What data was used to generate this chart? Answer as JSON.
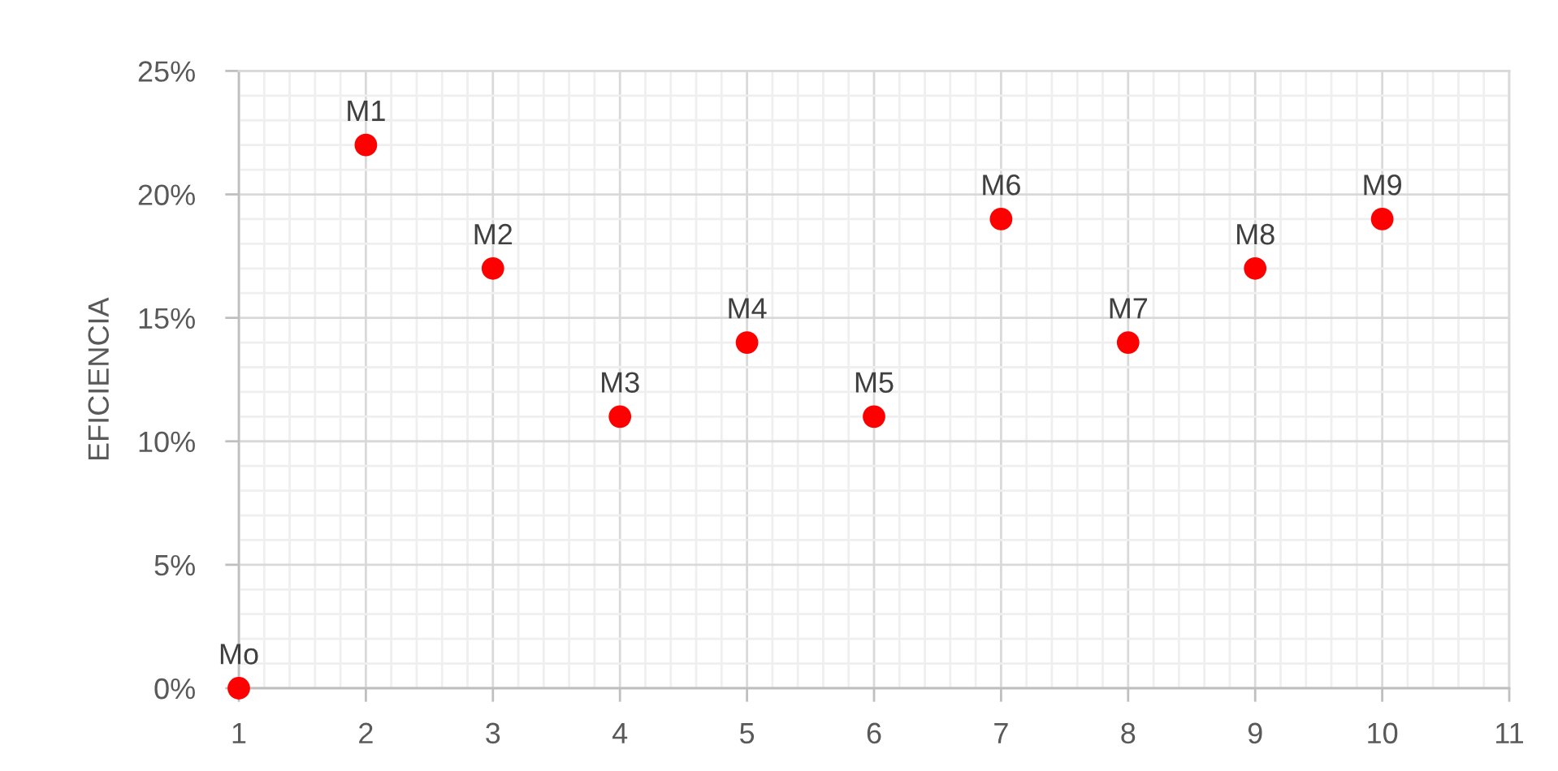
{
  "chart_data": {
    "type": "scatter",
    "ylabel": "EFICIENCIA",
    "series": [
      {
        "color": "#ff0000",
        "x": [
          1,
          2,
          3,
          4,
          5,
          6,
          7,
          8,
          9,
          10
        ],
        "values": [
          0,
          22,
          17,
          11,
          14,
          11,
          19,
          14,
          17,
          19
        ]
      }
    ],
    "annotations": [
      {
        "text": "Mo",
        "x": 1,
        "y": 0
      },
      {
        "text": "M1",
        "x": 2,
        "y": 22
      },
      {
        "text": "M2",
        "x": 3,
        "y": 17
      },
      {
        "text": "M3",
        "x": 4,
        "y": 11
      },
      {
        "text": "M4",
        "x": 5,
        "y": 14
      },
      {
        "text": "M5",
        "x": 6,
        "y": 11
      },
      {
        "text": "M6",
        "x": 7,
        "y": 19
      },
      {
        "text": "M7",
        "x": 8,
        "y": 14
      },
      {
        "text": "M8",
        "x": 9,
        "y": 17
      },
      {
        "text": "M9",
        "x": 10,
        "y": 19
      }
    ],
    "xlim": [
      1,
      11
    ],
    "xticks": [
      1,
      {
        "value": 1.2,
        "label": null
      },
      {
        "value": 1.4,
        "label": null
      },
      {
        "value": 1.6,
        "label": null
      },
      {
        "value": 1.8,
        "label": null
      },
      2,
      {
        "value": 2.2,
        "label": null
      },
      {
        "value": 2.4,
        "label": null
      },
      {
        "value": 2.6,
        "label": null
      },
      {
        "value": 2.8,
        "label": null
      },
      3,
      {
        "value": 3.2,
        "label": null
      },
      {
        "value": 3.4,
        "label": null
      },
      {
        "value": 3.6,
        "label": null
      },
      {
        "value": 3.8,
        "label": null
      },
      4,
      {
        "value": 4.2,
        "label": null
      },
      {
        "value": 4.4,
        "label": null
      },
      {
        "value": 4.6,
        "label": null
      },
      {
        "value": 4.8,
        "label": null
      },
      5,
      {
        "value": 5.2,
        "label": null
      },
      {
        "value": 5.4,
        "label": null
      },
      {
        "value": 5.6,
        "label": null
      },
      {
        "value": 5.8,
        "label": null
      },
      6,
      {
        "value": 6.2,
        "label": null
      },
      {
        "value": 6.4,
        "label": null
      },
      {
        "value": 6.6,
        "label": null
      },
      {
        "value": 6.8,
        "label": null
      },
      7,
      {
        "value": 7.2,
        "label": null
      },
      {
        "value": 7.4,
        "label": null
      },
      {
        "value": 7.6,
        "label": null
      },
      {
        "value": 7.8,
        "label": null
      },
      8,
      {
        "value": 8.2,
        "label": null
      },
      {
        "value": 8.4,
        "label": null
      },
      {
        "value": 8.6,
        "label": null
      },
      {
        "value": 8.8,
        "label": null
      },
      9,
      {
        "value": 9.2,
        "label": null
      },
      {
        "value": 9.4,
        "label": null
      },
      {
        "value": 9.6,
        "label": null
      },
      {
        "value": 9.8,
        "label": null
      },
      10,
      {
        "value": 10.2,
        "label": null
      },
      {
        "value": 10.4,
        "label": null
      },
      {
        "value": 10.6,
        "label": null
      },
      {
        "value": 10.8,
        "label": null
      },
      11
    ],
    "ylim": [
      0,
      25
    ],
    "yticks": [
      {
        "value": 0,
        "label": "0%"
      },
      {
        "value": 1,
        "label": null
      },
      {
        "value": 2,
        "label": null
      },
      {
        "value": 3,
        "label": null
      },
      {
        "value": 4,
        "label": null
      },
      {
        "value": 5,
        "label": "5%"
      },
      {
        "value": 6,
        "label": null
      },
      {
        "value": 7,
        "label": null
      },
      {
        "value": 8,
        "label": null
      },
      {
        "value": 9,
        "label": null
      },
      {
        "value": 10,
        "label": "10%"
      },
      {
        "value": 11,
        "label": null
      },
      {
        "value": 12,
        "label": null
      },
      {
        "value": 13,
        "label": null
      },
      {
        "value": 14,
        "label": null
      },
      {
        "value": 15,
        "label": "15%"
      },
      {
        "value": 16,
        "label": null
      },
      {
        "value": 17,
        "label": null
      },
      {
        "value": 18,
        "label": null
      },
      {
        "value": 19,
        "label": null
      },
      {
        "value": 20,
        "label": "20%"
      },
      {
        "value": 21,
        "label": null
      },
      {
        "value": 22,
        "label": null
      },
      {
        "value": 23,
        "label": null
      },
      {
        "value": 24,
        "label": null
      },
      {
        "value": 25,
        "label": "25%"
      }
    ],
    "grid": true,
    "marker": "circle"
  }
}
